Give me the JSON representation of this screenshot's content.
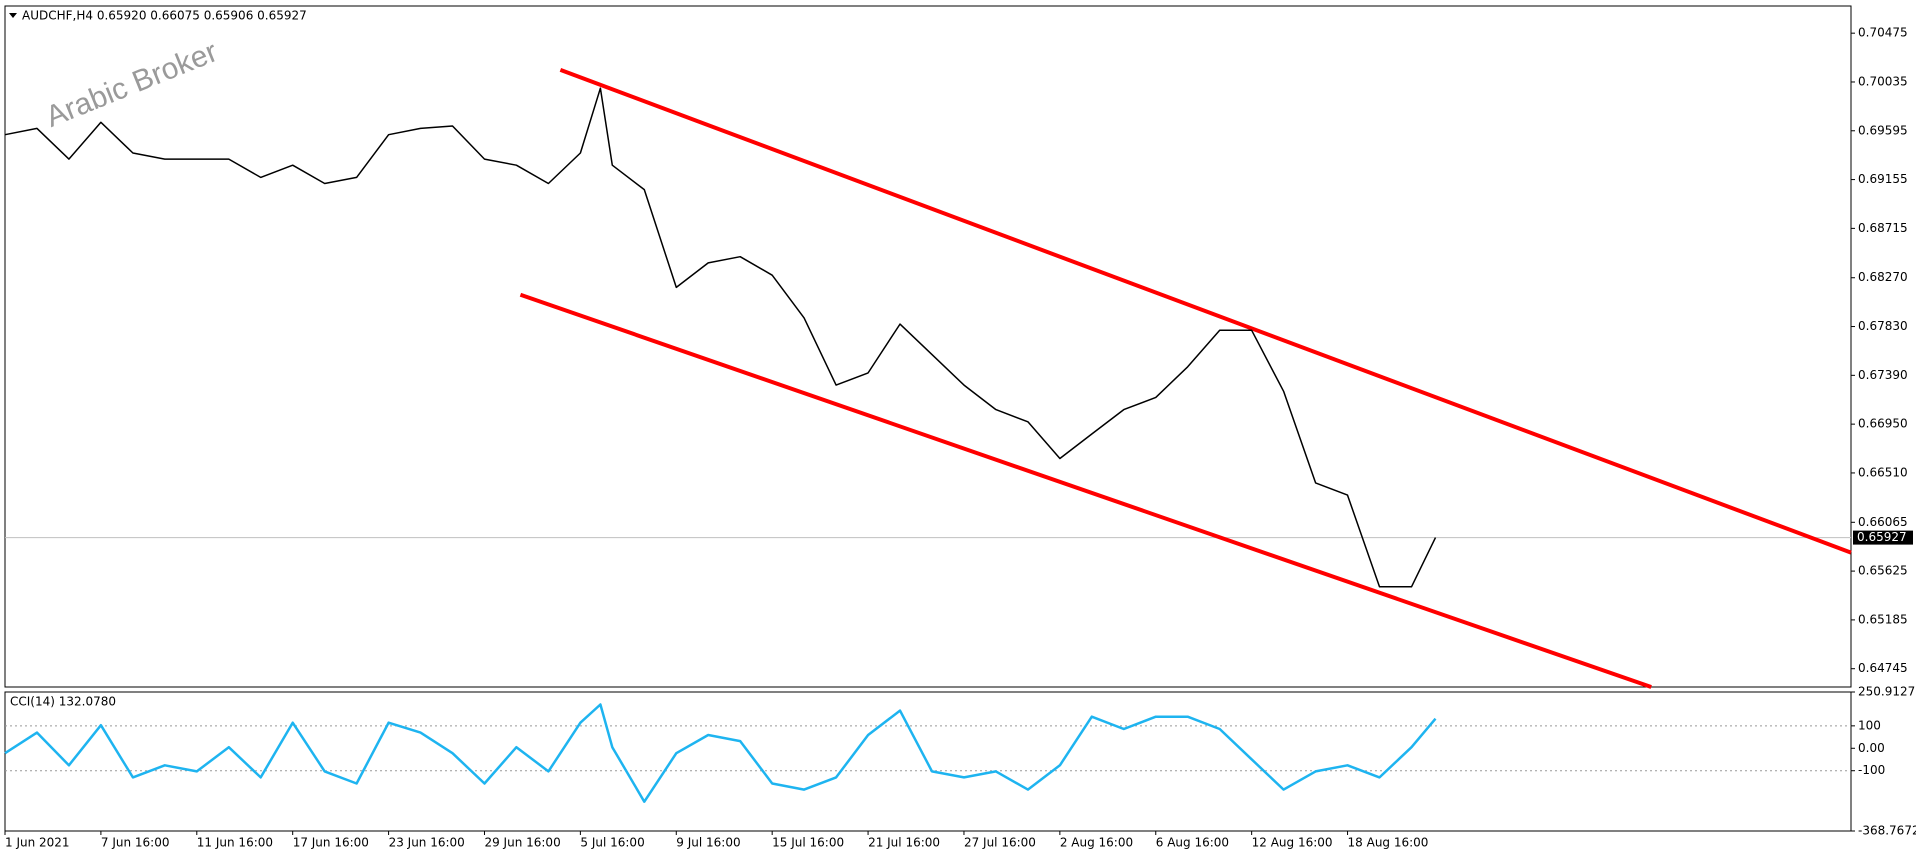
{
  "chart_data": [
    {
      "type": "line",
      "title": "AUDCHF,H4  0.65920 0.66075 0.65906 0.65927",
      "watermark": "Arabic Broker",
      "x": [
        0,
        8,
        16,
        24,
        32,
        40,
        48,
        56,
        64,
        72,
        80,
        88,
        96,
        104,
        112,
        120,
        128,
        136,
        144,
        149,
        152,
        160,
        168,
        176,
        184,
        192,
        200,
        208,
        216,
        224,
        232,
        240,
        248,
        256,
        264,
        272,
        280,
        288,
        296,
        304,
        312,
        320,
        328,
        336,
        344,
        352,
        358
      ],
      "series": [
        {
          "color": "#000000",
          "values": [
            0.6956,
            0.69616,
            0.6934,
            0.69671,
            0.69395,
            0.6934,
            0.6934,
            0.6934,
            0.69175,
            0.69285,
            0.6912,
            0.69175,
            0.6956,
            0.69616,
            0.69638,
            0.6934,
            0.69285,
            0.6912,
            0.69395,
            0.69979,
            0.69285,
            0.69065,
            0.68183,
            0.68404,
            0.6846,
            0.68293,
            0.67908,
            0.67302,
            0.67412,
            0.67852,
            0.67577,
            0.67302,
            0.67081,
            0.66971,
            0.6664,
            0.66861,
            0.67081,
            0.67191,
            0.67467,
            0.67797,
            0.67797,
            0.67246,
            0.6642,
            0.6631,
            0.65483,
            0.65483,
            0.65927
          ]
        }
      ],
      "current_price": 0.65927,
      "trendlines": [
        {
          "color": "#ff0000",
          "x": [
            139,
            462
          ],
          "values": [
            0.70144,
            0.65792
          ]
        },
        {
          "color": "#ff0000",
          "x": [
            129,
            412
          ],
          "values": [
            0.68117,
            0.6458
          ]
        }
      ],
      "xlim": [
        0,
        462
      ],
      "ylim": [
        0.6458,
        0.7072
      ],
      "yticks": [
        0.70475,
        0.70035,
        0.69595,
        0.69155,
        0.68715,
        {
          "value": 0.6827,
          "label": "0.68270"
        },
        {
          "value": 0.6783,
          "label": "0.67830"
        },
        {
          "value": 0.6739,
          "label": "0.67390"
        },
        {
          "value": 0.6695,
          "label": "0.66950"
        },
        {
          "value": 0.6651,
          "label": "0.66510"
        },
        0.66065,
        0.65625,
        0.65185,
        0.64745
      ]
    },
    {
      "type": "line",
      "title": "CCI(14) 132.0780",
      "x": [
        0,
        8,
        16,
        24,
        32,
        40,
        48,
        56,
        64,
        72,
        80,
        88,
        96,
        104,
        112,
        120,
        128,
        136,
        144,
        149,
        152,
        160,
        168,
        176,
        184,
        192,
        200,
        208,
        216,
        224,
        232,
        240,
        248,
        256,
        264,
        272,
        280,
        288,
        296,
        304,
        312,
        320,
        328,
        336,
        344,
        352,
        358
      ],
      "series": [
        {
          "color": "#1eb4f0",
          "values": [
            -22,
            70,
            -76,
            103,
            -130,
            -76,
            -103,
            5,
            -130,
            114,
            -103,
            -157,
            114,
            70,
            -22,
            -157,
            5,
            -103,
            114,
            195,
            5,
            -238,
            -22,
            59,
            32,
            -157,
            -184,
            -130,
            59,
            168,
            -103,
            -130,
            -103,
            -184,
            -76,
            141,
            86,
            141,
            141,
            86,
            -49,
            -184,
            -103,
            -76,
            -130,
            5,
            132.078
          ]
        }
      ],
      "xlim": [
        0,
        462
      ],
      "ylim": [
        -368.7672,
        250.9127
      ],
      "yticks": [
        250.9127,
        100,
        {
          "value": 0,
          "label": "0.00"
        },
        -100,
        -368.7672
      ],
      "xticks": [
        {
          "value": 0,
          "label": "1 Jun 2021"
        },
        {
          "value": 24,
          "label": "7 Jun 16:00"
        },
        {
          "value": 48,
          "label": "11 Jun 16:00"
        },
        {
          "value": 72,
          "label": "17 Jun 16:00"
        },
        {
          "value": 96,
          "label": "23 Jun 16:00"
        },
        {
          "value": 120,
          "label": "29 Jun 16:00"
        },
        {
          "value": 144,
          "label": "5 Jul 16:00"
        },
        {
          "value": 168,
          "label": "9 Jul 16:00"
        },
        {
          "value": 192,
          "label": "15 Jul 16:00"
        },
        {
          "value": 216,
          "label": "21 Jul 16:00"
        },
        {
          "value": 240,
          "label": "27 Jul 16:00"
        },
        {
          "value": 264,
          "label": "2 Aug 16:00"
        },
        {
          "value": 288,
          "label": "6 Aug 16:00"
        },
        {
          "value": 312,
          "label": "12 Aug 16:00"
        },
        {
          "value": 336,
          "label": "18 Aug 16:00"
        }
      ]
    }
  ]
}
